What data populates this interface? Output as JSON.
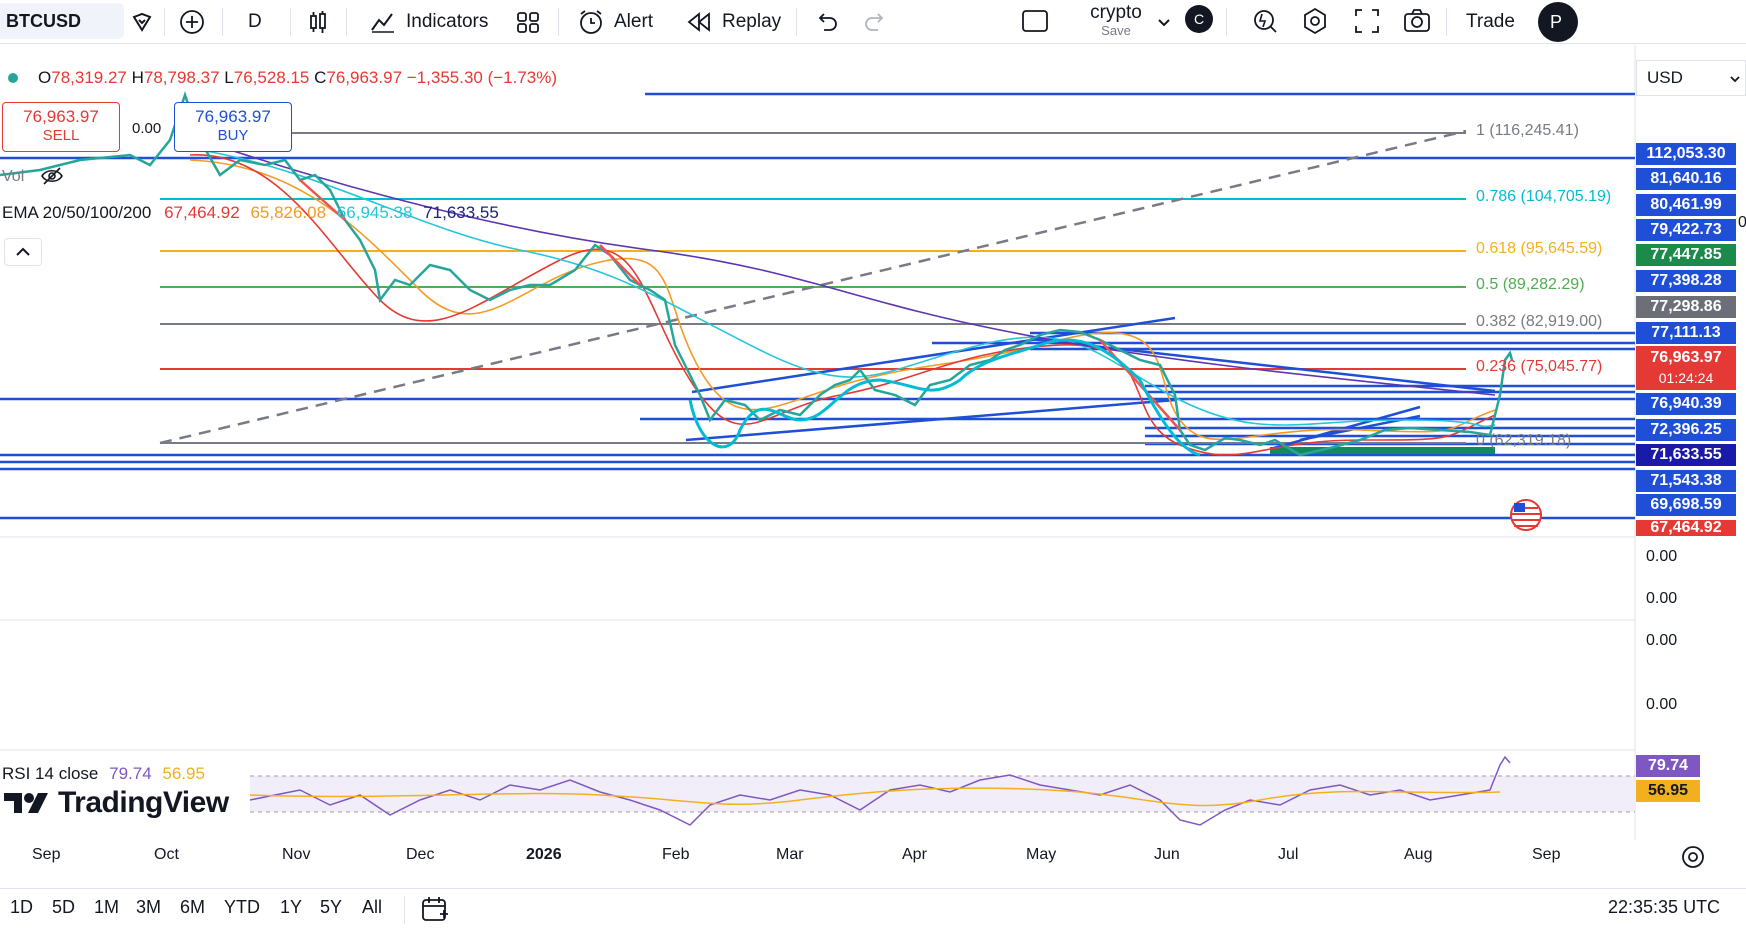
{
  "toolbar": {
    "symbol": "BTCUSD",
    "interval": "D",
    "indicators_label": "Indicators",
    "alert_label": "Alert",
    "replay_label": "Replay",
    "layout_name": "crypto",
    "layout_save": "Save",
    "avatar_letter": "C",
    "trade_label": "Trade",
    "profile_letter": "P"
  },
  "legend": {
    "open_label": "O",
    "open": "78,319.27",
    "high_label": "H",
    "high": "78,798.37",
    "low_label": "L",
    "low": "76,528.15",
    "close_label": "C",
    "close": "76,963.97",
    "change": "−1,355.30 (−1.73%)"
  },
  "trade_buttons": {
    "sell_price": "76,963.97",
    "sell_label": "SELL",
    "spread": "0.00",
    "buy_price": "76,963.97",
    "buy_label": "BUY"
  },
  "volume_label": "Vol",
  "ema": {
    "label": "EMA 20/50/100/200",
    "values": [
      "67,464.92",
      "65,826.08",
      "66,945.38",
      "71,633.55"
    ],
    "colors": [
      "#e53935",
      "#f59a23",
      "#26c6da",
      "#1a237e"
    ]
  },
  "rsi": {
    "label": "RSI 14 close",
    "value": "79.74",
    "ma_value": "56.95"
  },
  "currency": "USD",
  "fib_levels": [
    {
      "label": "1 (116,245.41)",
      "color": "#787b86"
    },
    {
      "label": "0.786 (104,705.19)",
      "color": "#00bcd4"
    },
    {
      "label": "0.618 (95,645.59)",
      "color": "#f2b01e"
    },
    {
      "label": "0.5 (89,282.29)",
      "color": "#4caf50"
    },
    {
      "label": "0.382 (82,919.00)",
      "color": "#787b86"
    },
    {
      "label": "0.236 (75,045.77)",
      "color": "#e53935"
    },
    {
      "label": "0 (62,319.18)",
      "color": "#787b86"
    }
  ],
  "price_scale": [
    {
      "value": "112,053.30",
      "color": "#1e4fd6"
    },
    {
      "value": "81,640.16",
      "color": "#1e4fd6"
    },
    {
      "value": "80,461.99",
      "color": "#1e4fd6"
    },
    {
      "value": "79,422.73",
      "color": "#1e4fd6"
    },
    {
      "value": "77,447.85",
      "color": "#1b8a4a"
    },
    {
      "value": "77,398.28",
      "color": "#1e4fd6"
    },
    {
      "value": "77,298.86",
      "color": "#6d6f78"
    },
    {
      "value": "77,111.13",
      "color": "#1e4fd6"
    },
    {
      "value": "76,963.97",
      "color": "#e53935"
    },
    {
      "value": "76,940.39",
      "color": "#1e4fd6"
    },
    {
      "value": "72,396.25",
      "color": "#1e4fd6"
    },
    {
      "value": "71,633.55",
      "color": "#1a1aa8"
    },
    {
      "value": "71,543.38",
      "color": "#1e4fd6"
    },
    {
      "value": "69,698.59",
      "color": "#1e4fd6"
    },
    {
      "value": "67,464.92",
      "color": "#e53935"
    }
  ],
  "countdown": "01:24:24",
  "zero_labels": [
    "0.00",
    "0.00",
    "0.00",
    "0.00"
  ],
  "rsi_scale": {
    "value": "79.74",
    "ma": "56.95"
  },
  "months": [
    "Sep",
    "Oct",
    "Nov",
    "Dec",
    "2026",
    "Feb",
    "Mar",
    "Apr",
    "May",
    "Jun",
    "Jul",
    "Aug",
    "Sep"
  ],
  "ranges": [
    "1D",
    "5D",
    "1M",
    "3M",
    "6M",
    "YTD",
    "1Y",
    "5Y",
    "All"
  ],
  "clock": "22:35:35 UTC",
  "brand": "TradingView",
  "edge_label": "0"
}
